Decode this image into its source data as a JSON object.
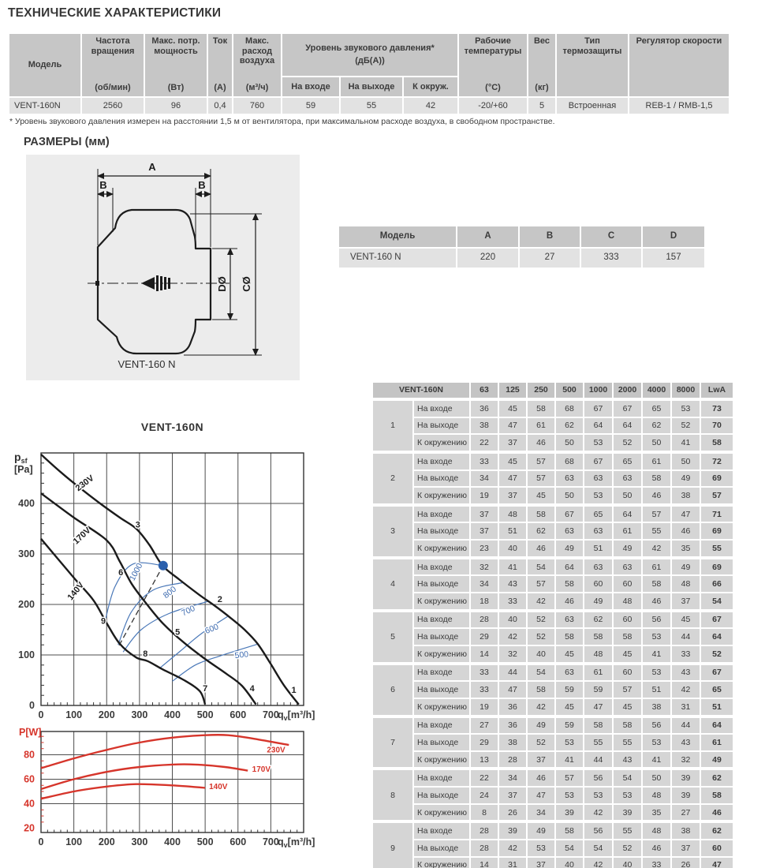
{
  "page": {
    "title": "ТЕХНИЧЕСКИЕ ХАРАКТЕРИСТИКИ",
    "dimensions_heading": "РАЗМЕРЫ (мм)",
    "footnote": "* Уровень звукового давления измерен на расстоянии 1,5 м от вентилятора, при максимальном расходе воздуха, в свободном пространстве."
  },
  "spec_table": {
    "model_header": "Модель",
    "columns": [
      {
        "title": "Частота вращения",
        "unit": "(об/мин)"
      },
      {
        "title": "Макс. потр. мощность",
        "unit": "(Вт)"
      },
      {
        "title": "Ток",
        "unit": "(А)"
      },
      {
        "title": "Макс. расход воздуха",
        "unit": "(м³/ч)"
      },
      {
        "title": "Уровень звукового давления*",
        "unit": "(дБ(А))",
        "sub": [
          "На входе",
          "На выходе",
          "К окруж."
        ]
      },
      {
        "title": "Рабочие температуры",
        "unit": "(°С)"
      },
      {
        "title": "Вес",
        "unit": "(кг)"
      },
      {
        "title": "Тип термозащиты",
        "unit": ""
      },
      {
        "title": "Регулятор скорости",
        "unit": ""
      }
    ],
    "row": [
      "VENT-160N",
      "2560",
      "96",
      "0,4",
      "760",
      "59",
      "55",
      "42",
      "-20/+60",
      "5",
      "Встроенная",
      "REB-1 / RMB-1,5"
    ]
  },
  "dimensions_table": {
    "headers": [
      "Модель",
      "A",
      "B",
      "C",
      "D"
    ],
    "row": [
      "VENT-160 N",
      "220",
      "27",
      "333",
      "157"
    ]
  },
  "diagram": {
    "label_a": "A",
    "label_b_left": "B",
    "label_b_right": "B",
    "label_d": "DØ",
    "label_c": "CØ",
    "caption": "VENT-160 N"
  },
  "chart_data": [
    {
      "type": "line",
      "title": "VENT-160N",
      "ylabel_base": "p",
      "ylabel_sub": "sf",
      "ylabel_unit": "[Pa]",
      "xlabel_base": "q",
      "xlabel_sub": "v",
      "xlabel_rest": "[m³/h]",
      "xlim": [
        0,
        800
      ],
      "ylim": [
        0,
        500
      ],
      "xticks": [
        0,
        100,
        200,
        300,
        400,
        500,
        600,
        700
      ],
      "yticks": [
        0,
        100,
        200,
        300,
        400
      ],
      "grid": true,
      "series": [
        {
          "name": "230V",
          "points": [
            [
              0,
              497
            ],
            [
              60,
              462
            ],
            [
              120,
              430
            ],
            [
              180,
              400
            ],
            [
              240,
              372
            ],
            [
              290,
              350
            ],
            [
              330,
              318
            ],
            [
              370,
              277
            ],
            [
              420,
              250
            ],
            [
              480,
              220
            ],
            [
              530,
              197
            ],
            [
              580,
              172
            ],
            [
              620,
              150
            ],
            [
              660,
              122
            ],
            [
              700,
              82
            ],
            [
              740,
              40
            ],
            [
              785,
              2
            ]
          ],
          "label_pos": [
            138,
            436
          ],
          "label_rot": -37
        },
        {
          "name": "170V",
          "points": [
            [
              0,
              420
            ],
            [
              100,
              372
            ],
            [
              200,
              327
            ],
            [
              240,
              285
            ],
            [
              276,
              241
            ],
            [
              324,
              199
            ],
            [
              372,
              162
            ],
            [
              436,
              124
            ],
            [
              500,
              92
            ],
            [
              564,
              63
            ],
            [
              612,
              39
            ],
            [
              655,
              2
            ]
          ],
          "label_pos": [
            130,
            332
          ],
          "label_rot": -43
        },
        {
          "name": "140V",
          "points": [
            [
              0,
              330
            ],
            [
              100,
              253
            ],
            [
              160,
              208
            ],
            [
              200,
              163
            ],
            [
              240,
              122
            ],
            [
              290,
              95
            ],
            [
              324,
              88
            ],
            [
              372,
              71
            ],
            [
              436,
              50
            ],
            [
              484,
              28
            ],
            [
              500,
              2
            ]
          ],
          "label_pos": [
            112,
            223
          ],
          "label_rot": -51
        }
      ],
      "rpm_curves": [
        {
          "label": "1000",
          "points": [
            [
              195,
              167
            ],
            [
              225,
              235
            ],
            [
              280,
              280
            ],
            [
              372,
              277
            ]
          ],
          "label_pos": [
            296,
            262
          ],
          "label_rot": -62
        },
        {
          "label": "800",
          "points": [
            [
              235,
              120
            ],
            [
              275,
              185
            ],
            [
              340,
              228
            ],
            [
              430,
              243
            ]
          ],
          "label_pos": [
            397,
            220
          ],
          "label_rot": -38
        },
        {
          "label": "700",
          "points": [
            [
              250,
              106
            ],
            [
              305,
              150
            ],
            [
              390,
              182
            ],
            [
              508,
              206
            ]
          ],
          "label_pos": [
            452,
            183
          ],
          "label_rot": -26
        },
        {
          "label": "600",
          "points": [
            [
              360,
              73
            ],
            [
              425,
              108
            ],
            [
              490,
              143
            ],
            [
              568,
              176
            ]
          ],
          "label_pos": [
            523,
            147
          ],
          "label_rot": -22
        },
        {
          "label": "500",
          "points": [
            [
              400,
              48
            ],
            [
              470,
              80
            ],
            [
              545,
              98
            ],
            [
              658,
              121
            ]
          ],
          "label_pos": [
            612,
            95
          ],
          "label_rot": -7
        }
      ],
      "operating_point": {
        "x": 372,
        "y": 277
      },
      "dashed_line": [
        [
          238,
          119
        ],
        [
          372,
          277
        ]
      ],
      "point_labels": [
        {
          "n": "1",
          "x": 770,
          "y": 25
        },
        {
          "n": "2",
          "x": 545,
          "y": 205
        },
        {
          "n": "3",
          "x": 295,
          "y": 352
        },
        {
          "n": "4",
          "x": 643,
          "y": 28
        },
        {
          "n": "5",
          "x": 416,
          "y": 140
        },
        {
          "n": "6",
          "x": 243,
          "y": 258
        },
        {
          "n": "7",
          "x": 500,
          "y": 28
        },
        {
          "n": "8",
          "x": 318,
          "y": 97
        },
        {
          "n": "9",
          "x": 190,
          "y": 162
        }
      ]
    },
    {
      "type": "line",
      "ylabel": "P[W]",
      "xlabel_base": "q",
      "xlabel_sub": "v",
      "xlabel_rest": "[m³/h]",
      "xlim": [
        0,
        800
      ],
      "ylim": [
        16.5,
        99
      ],
      "xticks": [
        0,
        100,
        200,
        300,
        400,
        500,
        600,
        700
      ],
      "yticks": [
        20,
        40,
        60,
        80
      ],
      "grid_y": [
        40,
        60,
        80
      ],
      "accent_color": "#d6352b",
      "series": [
        {
          "name": "230V",
          "points": [
            [
              0,
              69
            ],
            [
              100,
              77
            ],
            [
              200,
              84
            ],
            [
              300,
              90
            ],
            [
              400,
              94
            ],
            [
              500,
              96
            ],
            [
              570,
              96
            ],
            [
              650,
              93
            ],
            [
              755,
              88
            ]
          ],
          "label_pos": [
            688,
            82
          ]
        },
        {
          "name": "170V",
          "points": [
            [
              0,
              52
            ],
            [
              100,
              60
            ],
            [
              200,
              66
            ],
            [
              300,
              70
            ],
            [
              400,
              72
            ],
            [
              470,
              72
            ],
            [
              560,
              70
            ],
            [
              630,
              67
            ]
          ],
          "label_pos": [
            643,
            66
          ]
        },
        {
          "name": "140V",
          "points": [
            [
              0,
              44
            ],
            [
              100,
              50
            ],
            [
              200,
              54
            ],
            [
              290,
              56
            ],
            [
              400,
              55
            ],
            [
              500,
              53
            ]
          ],
          "label_pos": [
            512,
            52
          ]
        }
      ]
    }
  ],
  "acoustic_table": {
    "model": "VENT-160N",
    "freq_headers": [
      "63",
      "125",
      "250",
      "500",
      "1000",
      "2000",
      "4000",
      "8000",
      "LwA"
    ],
    "row_labels": [
      "На входе",
      "На выходе",
      "К окружению"
    ],
    "groups": [
      {
        "n": "1",
        "rows": [
          [
            36,
            45,
            58,
            68,
            67,
            67,
            65,
            53,
            73
          ],
          [
            38,
            47,
            61,
            62,
            64,
            64,
            62,
            52,
            70
          ],
          [
            22,
            37,
            46,
            50,
            53,
            52,
            50,
            41,
            58
          ]
        ]
      },
      {
        "n": "2",
        "rows": [
          [
            33,
            45,
            57,
            68,
            67,
            65,
            61,
            50,
            72
          ],
          [
            34,
            47,
            57,
            63,
            63,
            63,
            58,
            49,
            69
          ],
          [
            19,
            37,
            45,
            50,
            53,
            50,
            46,
            38,
            57
          ]
        ]
      },
      {
        "n": "3",
        "rows": [
          [
            37,
            48,
            58,
            67,
            65,
            64,
            57,
            47,
            71
          ],
          [
            37,
            51,
            62,
            63,
            63,
            61,
            55,
            46,
            69
          ],
          [
            23,
            40,
            46,
            49,
            51,
            49,
            42,
            35,
            55
          ]
        ]
      },
      {
        "n": "4",
        "rows": [
          [
            32,
            41,
            54,
            64,
            63,
            63,
            61,
            49,
            69
          ],
          [
            34,
            43,
            57,
            58,
            60,
            60,
            58,
            48,
            66
          ],
          [
            18,
            33,
            42,
            46,
            49,
            48,
            46,
            37,
            54
          ]
        ]
      },
      {
        "n": "5",
        "rows": [
          [
            28,
            40,
            52,
            63,
            62,
            60,
            56,
            45,
            67
          ],
          [
            29,
            42,
            52,
            58,
            58,
            58,
            53,
            44,
            64
          ],
          [
            14,
            32,
            40,
            45,
            48,
            45,
            41,
            33,
            52
          ]
        ]
      },
      {
        "n": "6",
        "rows": [
          [
            33,
            44,
            54,
            63,
            61,
            60,
            53,
            43,
            67
          ],
          [
            33,
            47,
            58,
            59,
            59,
            57,
            51,
            42,
            65
          ],
          [
            19,
            36,
            42,
            45,
            47,
            45,
            38,
            31,
            51
          ]
        ]
      },
      {
        "n": "7",
        "rows": [
          [
            27,
            36,
            49,
            59,
            58,
            58,
            56,
            44,
            64
          ],
          [
            29,
            38,
            52,
            53,
            55,
            55,
            53,
            43,
            61
          ],
          [
            13,
            28,
            37,
            41,
            44,
            43,
            41,
            32,
            49
          ]
        ]
      },
      {
        "n": "8",
        "rows": [
          [
            22,
            34,
            46,
            57,
            56,
            54,
            50,
            39,
            62
          ],
          [
            24,
            37,
            47,
            53,
            53,
            53,
            48,
            39,
            58
          ],
          [
            8,
            26,
            34,
            39,
            42,
            39,
            35,
            27,
            46
          ]
        ]
      },
      {
        "n": "9",
        "rows": [
          [
            28,
            39,
            49,
            58,
            56,
            55,
            48,
            38,
            62
          ],
          [
            28,
            42,
            53,
            54,
            54,
            52,
            46,
            37,
            60
          ],
          [
            14,
            31,
            37,
            40,
            42,
            40,
            33,
            26,
            47
          ]
        ]
      }
    ]
  }
}
